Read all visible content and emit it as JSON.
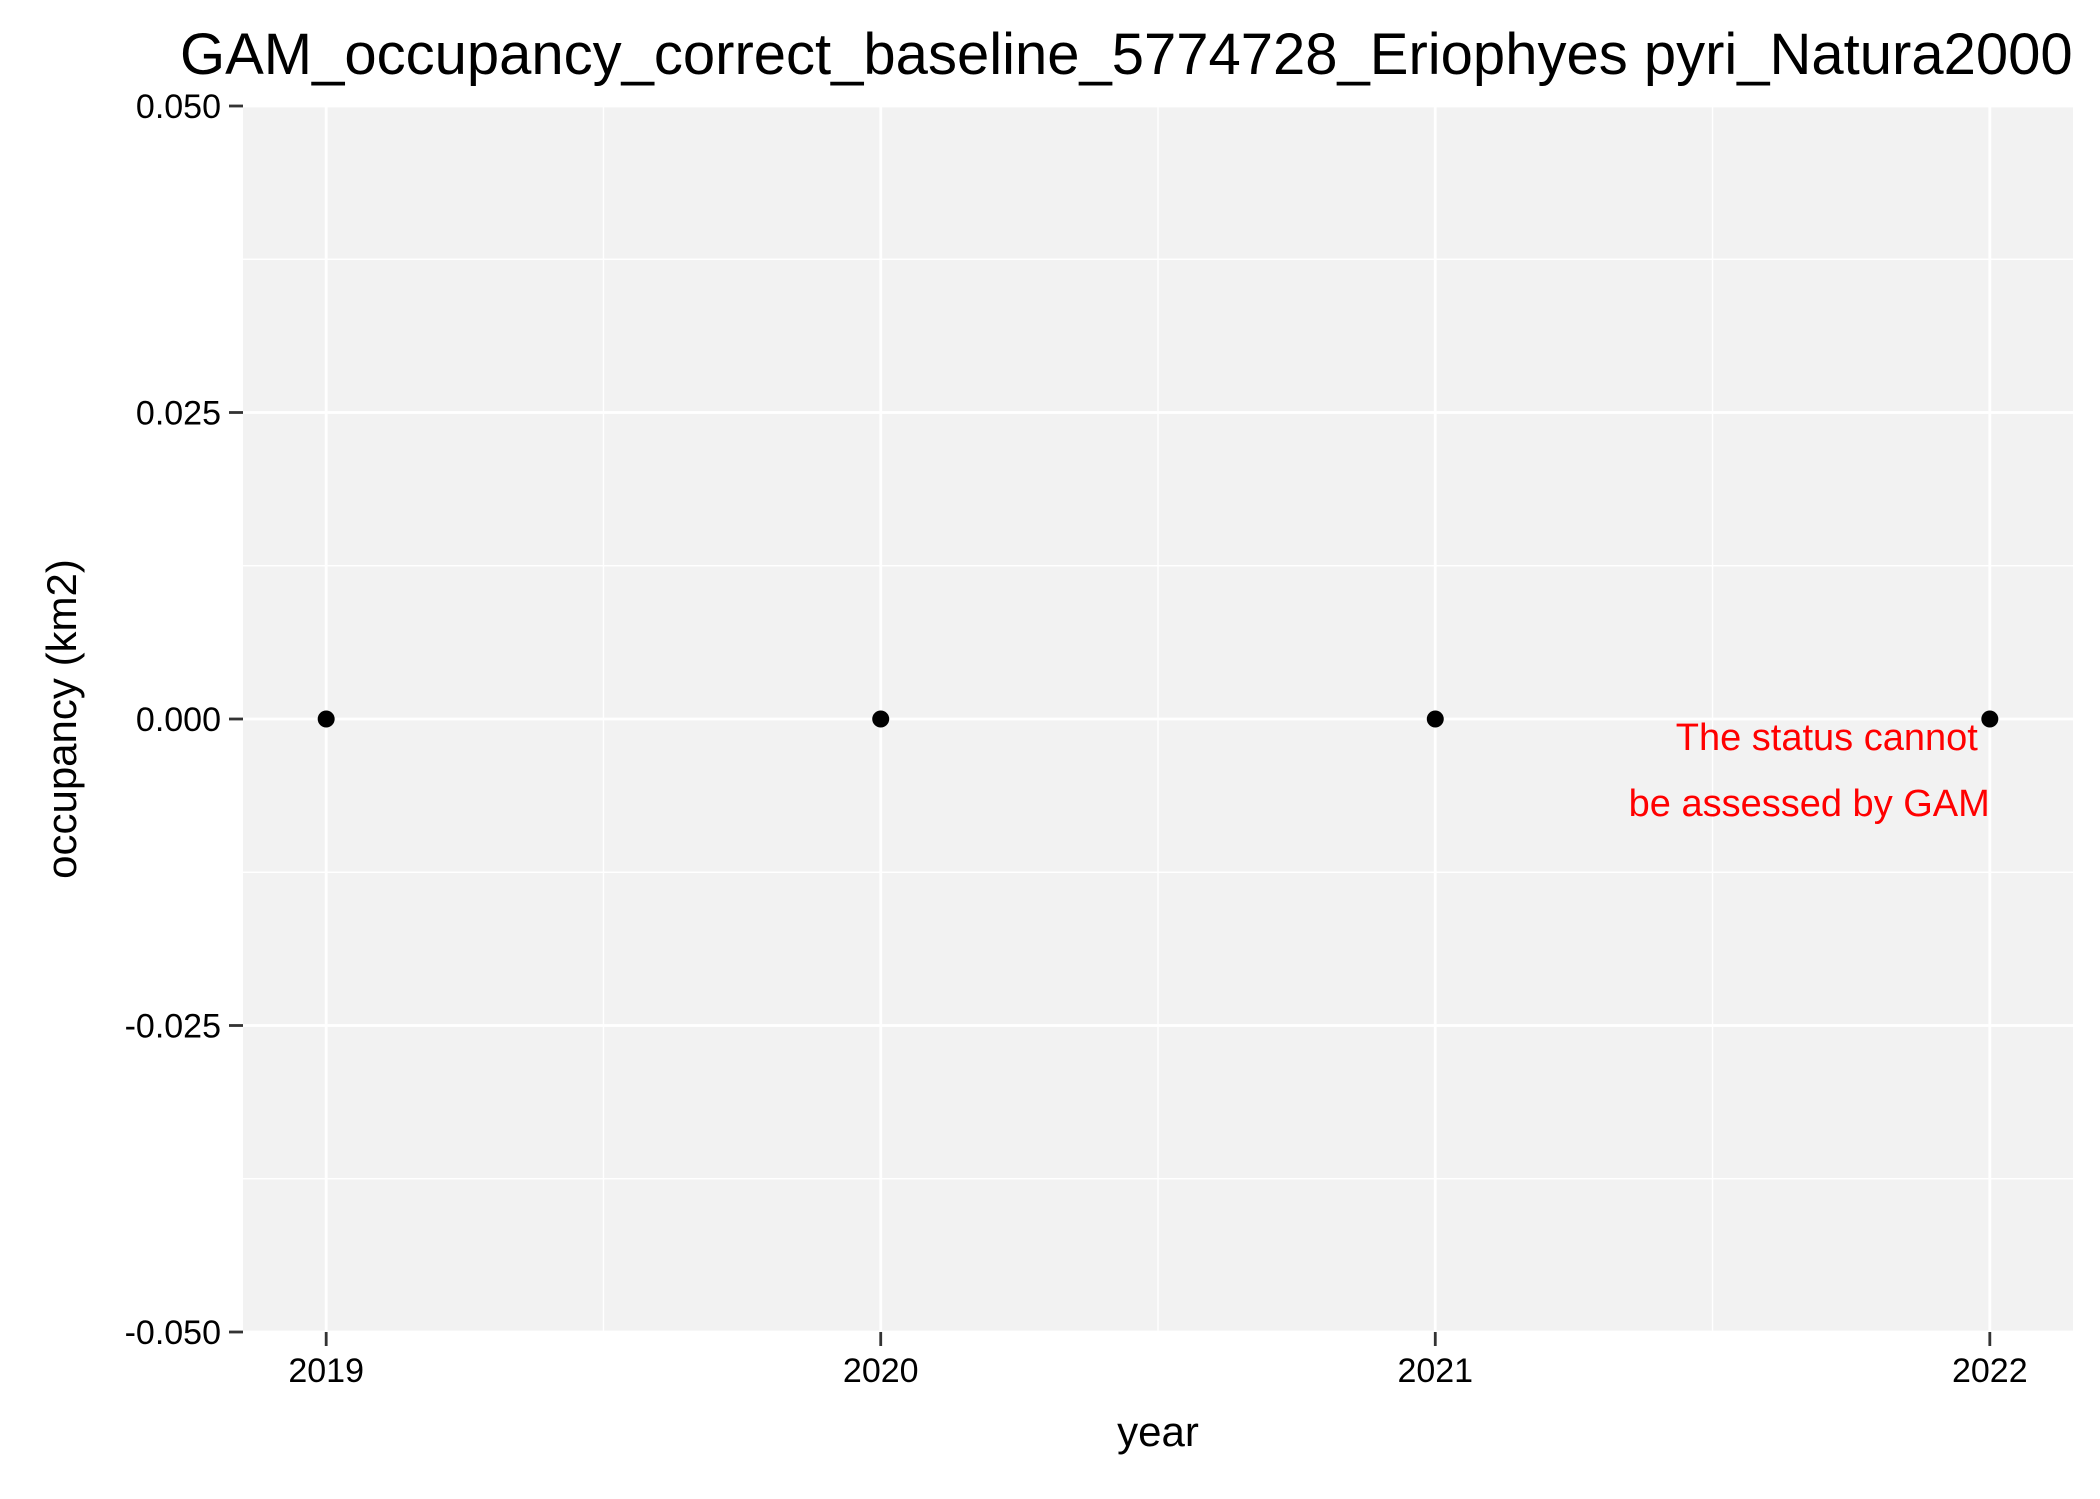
{
  "chart_data": {
    "type": "scatter",
    "title": "GAM_occupancy_correct_baseline_5774728_Eriophyes pyri_Natura2000",
    "xlabel": "year",
    "ylabel": "occupancy (km2)",
    "x": [
      2019,
      2020,
      2021,
      2022
    ],
    "y": [
      0,
      0,
      0,
      0
    ],
    "x_ticks": [
      "2019",
      "2020",
      "2021",
      "2022"
    ],
    "y_ticks": [
      "0.050",
      "0.025",
      "0.000",
      "-0.025",
      "-0.050"
    ],
    "y_tick_values": [
      0.05,
      0.025,
      0.0,
      -0.025,
      -0.05
    ],
    "xlim": [
      2018.85,
      2022.15
    ],
    "ylim": [
      -0.05,
      0.05
    ],
    "grid": true,
    "legend": "none",
    "annotation": {
      "lines": [
        "The status cannot",
        "be assessed by GAM"
      ],
      "color": "#ff0000"
    },
    "colors": {
      "panel_background": "#f2f2f2",
      "grid_major": "#ffffff",
      "grid_minor": "#f9f9f9",
      "point": "#000000"
    }
  }
}
